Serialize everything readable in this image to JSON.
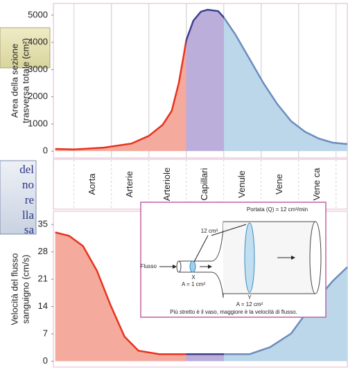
{
  "chart_data": [
    {
      "type": "area",
      "ylabel": [
        "Area della sezione",
        "trasversa totale (cm²)"
      ],
      "categories": [
        "Aorta",
        "Arterie",
        "Arteriole",
        "Capillari",
        "Venule",
        "Vene",
        "Vene ca"
      ],
      "category_colors": [
        "#f4aa9c",
        "#f4aa9c",
        "#f4aa9c",
        "#bcaedb",
        "#bcd6ea",
        "#bcd6ea",
        "#bcd6ea"
      ],
      "line_colors": [
        "#e8321e",
        "#e8321e",
        "#e8321e",
        "#3b3f8f",
        "#6c8cbc",
        "#6c8cbc",
        "#6c8cbc"
      ],
      "x": [
        -0.5,
        0,
        0.8,
        1.54,
        2,
        2.37,
        2.61,
        2.8,
        2.93,
        3,
        3.19,
        3.39,
        3.57,
        3.85,
        4,
        4.31,
        4.69,
        5.06,
        5.43,
        5.8,
        6.17,
        6.54,
        6.91,
        7.3
      ],
      "values": [
        80,
        60,
        130,
        280,
        560,
        970,
        1480,
        2500,
        3520,
        4080,
        4800,
        5130,
        5200,
        5150,
        4920,
        4290,
        3390,
        2500,
        1730,
        1100,
        710,
        460,
        310,
        260
      ],
      "xlim": [
        -0.55,
        7.3
      ],
      "ylim": [
        -250,
        5430
      ],
      "yticks": [
        0,
        1000,
        2000,
        3000,
        4000,
        5000
      ],
      "grid": true
    },
    {
      "type": "area",
      "ylabel": [
        "Velocità del flusso",
        "sanguigno (cm/s)"
      ],
      "category_colors": [
        "#f4aa9c",
        "#f4aa9c",
        "#f4aa9c",
        "#bcaedb",
        "#bcd6ea",
        "#bcd6ea",
        "#bcd6ea"
      ],
      "line_colors": [
        "#e8321e",
        "#e8321e",
        "#e8321e",
        "#3b3f8f",
        "#6c8cbc",
        "#6c8cbc",
        "#6c8cbc"
      ],
      "x": [
        -0.5,
        -0.13,
        0.24,
        0.61,
        0.98,
        1.35,
        1.72,
        2.28,
        3,
        4,
        4.69,
        5.24,
        5.8,
        6.35,
        6.91,
        7.3
      ],
      "values": [
        33,
        32.1,
        29.5,
        23.2,
        14.3,
        6.3,
        2.7,
        1.8,
        1.8,
        1.8,
        1.8,
        3.6,
        7.1,
        14.3,
        20.5,
        24.1
      ],
      "xlim": [
        -0.55,
        7.3
      ],
      "ylim": [
        -1.5,
        38.4
      ],
      "yticks": [
        0,
        7,
        14,
        21,
        28,
        35
      ],
      "grid": false
    }
  ],
  "inset": {
    "title": "Portata (Q) = 12 cm³/min",
    "volume": "12 cm³",
    "flow": "Flusso",
    "point_x": "X",
    "area_x": "A = 1 cm²",
    "point_y": "Y",
    "area_y": "A = 12 cm²",
    "caption": "Più stretto è il vaso, maggiore è la velocità di flusso."
  },
  "sidebar": [
    "del",
    "no",
    "re",
    "lla",
    "sa"
  ]
}
